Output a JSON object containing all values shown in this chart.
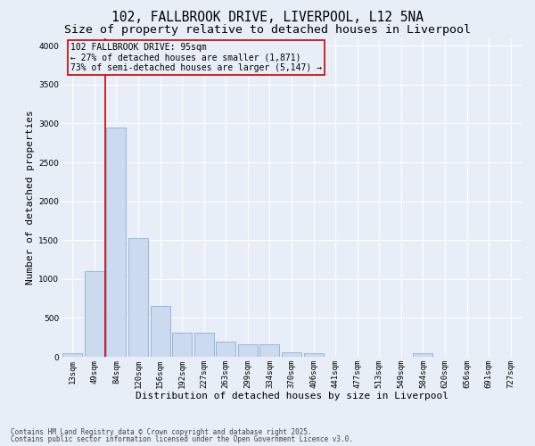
{
  "title1": "102, FALLBROOK DRIVE, LIVERPOOL, L12 5NA",
  "title2": "Size of property relative to detached houses in Liverpool",
  "xlabel": "Distribution of detached houses by size in Liverpool",
  "ylabel": "Number of detached properties",
  "categories": [
    "13sqm",
    "49sqm",
    "84sqm",
    "120sqm",
    "156sqm",
    "192sqm",
    "227sqm",
    "263sqm",
    "299sqm",
    "334sqm",
    "370sqm",
    "406sqm",
    "441sqm",
    "477sqm",
    "513sqm",
    "549sqm",
    "584sqm",
    "620sqm",
    "656sqm",
    "691sqm",
    "727sqm"
  ],
  "values": [
    50,
    1100,
    2950,
    1530,
    650,
    310,
    310,
    190,
    160,
    160,
    60,
    50,
    0,
    0,
    0,
    0,
    50,
    0,
    0,
    0,
    0
  ],
  "bar_color": "#ccdaf0",
  "bar_edgecolor": "#8aaed4",
  "vline_color": "#cc0000",
  "annotation_title": "102 FALLBROOK DRIVE: 95sqm",
  "annotation_line1": "← 27% of detached houses are smaller (1,871)",
  "annotation_line2": "73% of semi-detached houses are larger (5,147) →",
  "annotation_box_color": "#cc0000",
  "background_color": "#e8eef7",
  "grid_color": "#d0d8e8",
  "ylim": [
    0,
    4100
  ],
  "yticks": [
    0,
    500,
    1000,
    1500,
    2000,
    2500,
    3000,
    3500,
    4000
  ],
  "footer1": "Contains HM Land Registry data © Crown copyright and database right 2025.",
  "footer2": "Contains public sector information licensed under the Open Government Licence v3.0.",
  "title_fontsize": 10.5,
  "subtitle_fontsize": 9.5,
  "tick_fontsize": 6.5,
  "label_fontsize": 8,
  "annotation_fontsize": 7,
  "footer_fontsize": 5.5
}
